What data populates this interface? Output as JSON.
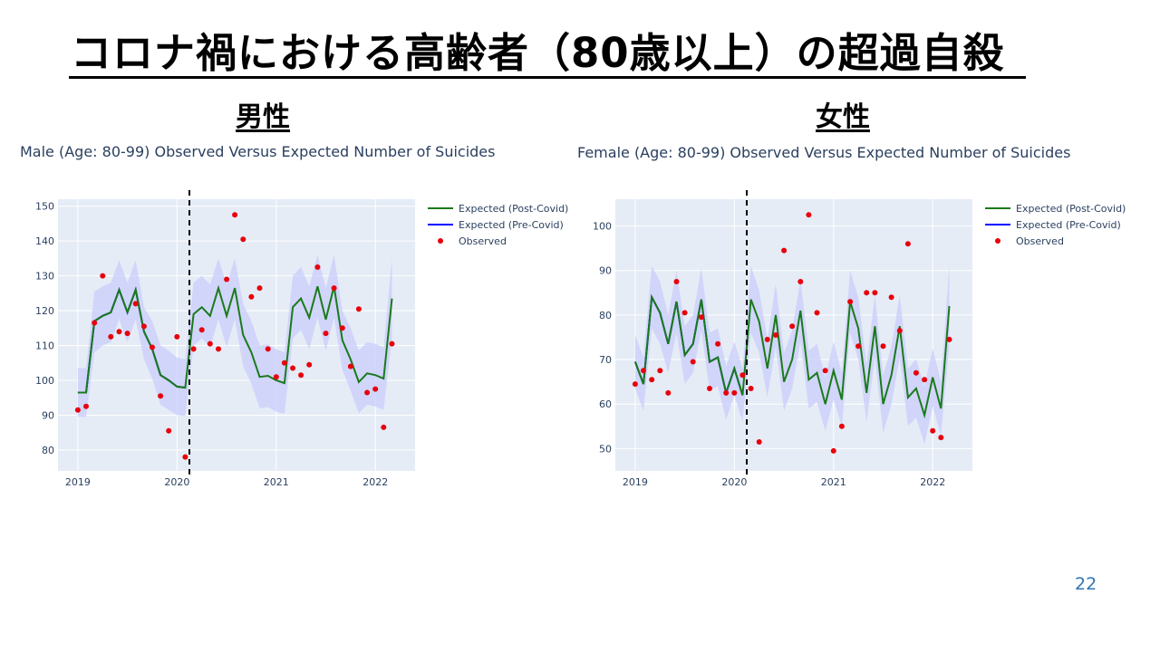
{
  "slide": {
    "title": "コロナ禍における高齢者（80歳以上）の超過自殺",
    "page_number": "22"
  },
  "colors": {
    "expected_post": "#1a7a1a",
    "expected_pre": "#0000ff",
    "observed": "#e8000b",
    "band": "#c9cdfb",
    "plot_bg": "#e5ecf6"
  },
  "chart_data": [
    {
      "type": "line",
      "heading": "男性",
      "title": "Male (Age: 80-99) Observed Versus Expected Number of Suicides",
      "x_ticks": [
        "2019",
        "2020",
        "2021",
        "2022"
      ],
      "xlim": [
        2018.8,
        2022.4
      ],
      "y_ticks": [
        "80",
        "90",
        "100",
        "110",
        "120",
        "130",
        "140",
        "150"
      ],
      "ylim": [
        74,
        152
      ],
      "vline_x": 2020.125,
      "legend": [
        "Expected (Post-Covid)",
        "Expected (Pre-Covid)",
        "Observed"
      ],
      "series": [
        {
          "name": "Expected (Post-Covid)",
          "x": [
            2019.0,
            2019.083,
            2019.167,
            2019.25,
            2019.333,
            2019.417,
            2019.5,
            2019.583,
            2019.667,
            2019.75,
            2019.833,
            2019.917,
            2020.0,
            2020.083,
            2020.167,
            2020.25,
            2020.333,
            2020.417,
            2020.5,
            2020.583,
            2020.667,
            2020.75,
            2020.833,
            2020.917,
            2021.0,
            2021.083,
            2021.167,
            2021.25,
            2021.333,
            2021.417,
            2021.5,
            2021.583,
            2021.667,
            2021.75,
            2021.833,
            2021.917,
            2022.0,
            2022.083,
            2022.167
          ],
          "values": [
            96.5,
            96.5,
            117,
            118.5,
            119.5,
            126,
            119.5,
            126,
            114,
            109,
            101.5,
            100,
            98.2,
            97.9,
            119,
            121,
            118.5,
            126.5,
            118.5,
            126.5,
            113,
            108,
            101,
            101.3,
            100,
            99.2,
            121,
            123.5,
            118,
            127,
            117.5,
            127,
            111.5,
            106,
            99.5,
            102,
            101.5,
            100.5,
            123.5
          ]
        },
        {
          "name": "Expected (Pre-Covid)",
          "x": [
            2019.0,
            2019.083,
            2019.167,
            2019.25,
            2019.333,
            2019.417,
            2019.5,
            2019.583,
            2019.667,
            2019.75,
            2019.833,
            2019.917,
            2020.0,
            2020.083
          ],
          "values": [
            96.5,
            96.5,
            117,
            118.5,
            119.5,
            126,
            119.5,
            126,
            114,
            109,
            101.5,
            100,
            98.2,
            97.9
          ]
        },
        {
          "name": "Observed",
          "x": [
            2019.0,
            2019.083,
            2019.167,
            2019.25,
            2019.333,
            2019.417,
            2019.5,
            2019.583,
            2019.667,
            2019.75,
            2019.833,
            2019.917,
            2020.0,
            2020.083,
            2020.167,
            2020.25,
            2020.333,
            2020.417,
            2020.5,
            2020.583,
            2020.667,
            2020.75,
            2020.833,
            2020.917,
            2021.0,
            2021.083,
            2021.167,
            2021.25,
            2021.333,
            2021.417,
            2021.5,
            2021.583,
            2021.667,
            2021.75,
            2021.833,
            2021.917,
            2022.0,
            2022.083,
            2022.167
          ],
          "values": [
            91.5,
            92.5,
            116.5,
            130,
            112.5,
            114,
            113.5,
            122,
            115.5,
            109.5,
            95.5,
            85.5,
            112.5,
            78,
            109,
            114.5,
            110.5,
            109,
            129,
            147.5,
            140.5,
            124,
            126.5,
            109,
            101,
            105,
            103.5,
            101.5,
            104.5,
            132.5,
            113.5,
            126.5,
            115,
            104,
            120.5,
            96.5,
            97.5,
            86.5,
            110.5
          ]
        }
      ],
      "band_upper": [
        103.5,
        103.5,
        125.5,
        127,
        128,
        134.5,
        128,
        134.5,
        121,
        117,
        110,
        108.5,
        106.5,
        106,
        128,
        130,
        127.5,
        135,
        127.5,
        135,
        122,
        117,
        110,
        110.3,
        109,
        108,
        130,
        132.5,
        127,
        136,
        126.5,
        136,
        120,
        115,
        108.5,
        111,
        110.5,
        109.5,
        135
      ],
      "band_lower": [
        89.5,
        89.5,
        108,
        110,
        111,
        117.5,
        111,
        117.5,
        106,
        100.5,
        93,
        91.5,
        90,
        89.8,
        110,
        112,
        109.5,
        117.5,
        109.5,
        117.5,
        104,
        99,
        92,
        92.3,
        91,
        90.4,
        112,
        114.5,
        109,
        118,
        108.5,
        118,
        103,
        97,
        90.5,
        93,
        92.5,
        91.5,
        112
      ]
    },
    {
      "type": "line",
      "heading": "女性",
      "title": "Female (Age: 80-99) Observed Versus Expected Number of Suicides",
      "x_ticks": [
        "2019",
        "2020",
        "2021",
        "2022"
      ],
      "xlim": [
        2018.8,
        2022.4
      ],
      "y_ticks": [
        "50",
        "60",
        "70",
        "80",
        "90",
        "100"
      ],
      "ylim": [
        45,
        106
      ],
      "vline_x": 2020.125,
      "legend": [
        "Expected (Post-Covid)",
        "Expected (Pre-Covid)",
        "Observed"
      ],
      "series": [
        {
          "name": "Expected (Post-Covid)",
          "x": [
            2019.0,
            2019.083,
            2019.167,
            2019.25,
            2019.333,
            2019.417,
            2019.5,
            2019.583,
            2019.667,
            2019.75,
            2019.833,
            2019.917,
            2020.0,
            2020.083,
            2020.167,
            2020.25,
            2020.333,
            2020.417,
            2020.5,
            2020.583,
            2020.667,
            2020.75,
            2020.833,
            2020.917,
            2021.0,
            2021.083,
            2021.167,
            2021.25,
            2021.333,
            2021.417,
            2021.5,
            2021.583,
            2021.667,
            2021.75,
            2021.833,
            2021.917,
            2022.0,
            2022.083,
            2022.167
          ],
          "values": [
            69.5,
            64.5,
            84,
            80.5,
            73.5,
            83,
            71,
            73.5,
            83.5,
            69.5,
            70.5,
            62.5,
            68,
            62,
            83.5,
            78.5,
            68,
            80,
            65,
            70,
            81,
            65.5,
            67,
            60,
            67.5,
            61,
            83,
            77,
            62.5,
            77.5,
            60,
            66.5,
            77.5,
            61.5,
            63.5,
            57.5,
            66,
            59,
            82
          ]
        },
        {
          "name": "Expected (Pre-Covid)",
          "x": [
            2019.0,
            2019.083,
            2019.167,
            2019.25,
            2019.333,
            2019.417,
            2019.5,
            2019.583,
            2019.667,
            2019.75,
            2019.833,
            2019.917,
            2020.0,
            2020.083
          ],
          "values": [
            69.5,
            64.5,
            84,
            80.5,
            73.5,
            83,
            71,
            73.5,
            83.5,
            69.5,
            70.5,
            62.5,
            68,
            62
          ]
        },
        {
          "name": "Observed",
          "x": [
            2019.0,
            2019.083,
            2019.167,
            2019.25,
            2019.333,
            2019.417,
            2019.5,
            2019.583,
            2019.667,
            2019.75,
            2019.833,
            2019.917,
            2020.0,
            2020.083,
            2020.167,
            2020.25,
            2020.333,
            2020.417,
            2020.5,
            2020.583,
            2020.667,
            2020.75,
            2020.833,
            2020.917,
            2021.0,
            2021.083,
            2021.167,
            2021.25,
            2021.333,
            2021.417,
            2021.5,
            2021.583,
            2021.667,
            2021.75,
            2021.833,
            2021.917,
            2022.0,
            2022.083,
            2022.167
          ],
          "values": [
            64.5,
            67.5,
            65.5,
            67.5,
            62.5,
            87.5,
            80.5,
            69.5,
            79.5,
            63.5,
            73.5,
            62.5,
            62.5,
            66.5,
            63.5,
            51.5,
            74.5,
            75.5,
            94.5,
            77.5,
            87.5,
            102.5,
            80.5,
            67.5,
            49.5,
            55,
            83,
            73,
            85,
            85,
            73,
            84,
            76.5,
            96,
            67,
            65.5,
            54,
            52.5,
            74.5
          ]
        }
      ],
      "band_upper": [
        75.5,
        70.5,
        91,
        87.5,
        80,
        90,
        77.5,
        80,
        90.5,
        76,
        77,
        68.5,
        74,
        68,
        91,
        85.5,
        74.5,
        87,
        71.5,
        76.5,
        88,
        72,
        73.5,
        66,
        74,
        67,
        90,
        84,
        69,
        84.5,
        66.5,
        73,
        84.5,
        68,
        70,
        64,
        72.5,
        65,
        91
      ],
      "band_lower": [
        63.5,
        58.5,
        77,
        73.5,
        67,
        76,
        64.5,
        67,
        76.5,
        63,
        64,
        56.5,
        62,
        56,
        76,
        71.5,
        61.5,
        73,
        58.5,
        63.5,
        74,
        59,
        60.5,
        54,
        61,
        55,
        76,
        70,
        56,
        70.5,
        53.5,
        60,
        70.5,
        55,
        57,
        51,
        59.5,
        53,
        73
      ]
    }
  ]
}
